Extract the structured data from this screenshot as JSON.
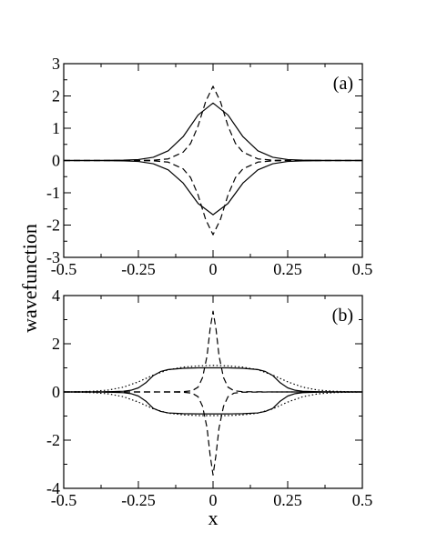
{
  "figure": {
    "ylabel": "wavefunction",
    "xlabel": "x"
  },
  "chart_data": [
    {
      "type": "line",
      "panel_label": "(a)",
      "xlim": [
        -0.5,
        0.5
      ],
      "ylim": [
        -3,
        3
      ],
      "xticks": [
        -0.5,
        -0.25,
        0,
        0.25,
        0.5
      ],
      "xtick_labels": [
        "-0.5",
        "-0.25",
        "0",
        "0.25",
        "0.5"
      ],
      "yticks": [
        -3,
        -2,
        -1,
        0,
        1,
        2,
        3
      ],
      "ytick_labels": [
        "-3",
        "-2",
        "-1",
        "0",
        "1",
        "2",
        "3"
      ],
      "grid": false,
      "series": [
        {
          "style": "solid",
          "x": [
            -0.5,
            -0.4,
            -0.3,
            -0.25,
            -0.2,
            -0.15,
            -0.1,
            -0.05,
            0,
            0.05,
            0.1,
            0.15,
            0.2,
            0.25,
            0.3,
            0.4,
            0.5
          ],
          "values": [
            0,
            0,
            0.01,
            0.03,
            0.1,
            0.3,
            0.74,
            1.41,
            1.78,
            1.41,
            0.74,
            0.3,
            0.1,
            0.03,
            0.01,
            0,
            0
          ]
        },
        {
          "style": "solid",
          "x": [
            -0.5,
            -0.4,
            -0.3,
            -0.25,
            -0.2,
            -0.15,
            -0.1,
            -0.05,
            0,
            0.05,
            0.1,
            0.15,
            0.2,
            0.25,
            0.3,
            0.4,
            0.5
          ],
          "values": [
            0,
            0,
            -0.01,
            -0.03,
            -0.1,
            -0.29,
            -0.7,
            -1.33,
            -1.68,
            -1.33,
            -0.7,
            -0.29,
            -0.1,
            -0.03,
            -0.01,
            0,
            0
          ]
        },
        {
          "style": "dashed",
          "x": [
            -0.5,
            -0.3,
            -0.2,
            -0.15,
            -0.1,
            -0.075,
            -0.05,
            -0.025,
            0,
            0.025,
            0.05,
            0.075,
            0.1,
            0.15,
            0.2,
            0.3,
            0.5
          ],
          "values": [
            0,
            0,
            0.01,
            0.05,
            0.26,
            0.53,
            1.07,
            1.82,
            2.3,
            1.82,
            1.07,
            0.53,
            0.26,
            0.05,
            0.01,
            0,
            0
          ]
        },
        {
          "style": "dashed",
          "x": [
            -0.5,
            -0.3,
            -0.2,
            -0.15,
            -0.1,
            -0.075,
            -0.05,
            -0.025,
            0,
            0.025,
            0.05,
            0.075,
            0.1,
            0.15,
            0.2,
            0.3,
            0.5
          ],
          "values": [
            0,
            0,
            -0.01,
            -0.05,
            -0.26,
            -0.53,
            -1.07,
            -1.82,
            -2.3,
            -1.82,
            -1.07,
            -0.53,
            -0.26,
            -0.05,
            -0.01,
            0,
            0
          ]
        }
      ]
    },
    {
      "type": "line",
      "panel_label": "(b)",
      "xlim": [
        -0.5,
        0.5
      ],
      "ylim": [
        -4,
        4
      ],
      "xticks": [
        -0.5,
        -0.25,
        0,
        0.25,
        0.5
      ],
      "xtick_labels": [
        "-0.5",
        "-0.25",
        "0",
        "0.25",
        "0.5"
      ],
      "yticks": [
        -4,
        -2,
        0,
        2,
        4
      ],
      "ytick_labels": [
        "-4",
        "-2",
        "0",
        "2",
        "4"
      ],
      "grid": false,
      "series": [
        {
          "style": "solid",
          "x": [
            -0.5,
            -0.4,
            -0.35,
            -0.3,
            -0.275,
            -0.25,
            -0.225,
            -0.2,
            -0.175,
            -0.15,
            -0.1,
            -0.05,
            0,
            0.05,
            0.1,
            0.15,
            0.175,
            0.2,
            0.225,
            0.25,
            0.275,
            0.3,
            0.35,
            0.4,
            0.5
          ],
          "values": [
            0,
            0,
            0.01,
            0.03,
            0.07,
            0.17,
            0.38,
            0.68,
            0.85,
            0.93,
            0.98,
            1.0,
            1.0,
            1.0,
            0.98,
            0.93,
            0.85,
            0.68,
            0.38,
            0.17,
            0.07,
            0.03,
            0.01,
            0,
            0
          ]
        },
        {
          "style": "solid",
          "x": [
            -0.5,
            -0.4,
            -0.35,
            -0.3,
            -0.275,
            -0.25,
            -0.225,
            -0.2,
            -0.175,
            -0.15,
            -0.1,
            -0.05,
            0,
            0.05,
            0.1,
            0.15,
            0.175,
            0.2,
            0.225,
            0.25,
            0.275,
            0.3,
            0.35,
            0.4,
            0.5
          ],
          "values": [
            0,
            0,
            -0.01,
            -0.03,
            -0.07,
            -0.17,
            -0.38,
            -0.68,
            -0.81,
            -0.87,
            -0.9,
            -0.91,
            -0.91,
            -0.91,
            -0.9,
            -0.87,
            -0.81,
            -0.68,
            -0.38,
            -0.17,
            -0.07,
            -0.03,
            -0.01,
            0,
            0
          ]
        },
        {
          "style": "dotted",
          "x": [
            -0.5,
            -0.45,
            -0.4,
            -0.35,
            -0.3,
            -0.25,
            -0.2,
            -0.15,
            -0.1,
            -0.05,
            0,
            0.05,
            0.1,
            0.15,
            0.2,
            0.25,
            0.3,
            0.35,
            0.4,
            0.45,
            0.5
          ],
          "values": [
            0,
            0.01,
            0.03,
            0.08,
            0.2,
            0.42,
            0.7,
            0.92,
            1.03,
            1.08,
            1.1,
            1.08,
            1.03,
            0.92,
            0.7,
            0.42,
            0.2,
            0.08,
            0.03,
            0.01,
            0
          ]
        },
        {
          "style": "dotted",
          "x": [
            -0.5,
            -0.45,
            -0.4,
            -0.35,
            -0.3,
            -0.25,
            -0.2,
            -0.15,
            -0.1,
            -0.05,
            0,
            0.05,
            0.1,
            0.15,
            0.2,
            0.25,
            0.3,
            0.35,
            0.4,
            0.45,
            0.5
          ],
          "values": [
            0,
            -0.01,
            -0.03,
            -0.08,
            -0.2,
            -0.42,
            -0.7,
            -0.88,
            -0.95,
            -0.98,
            -0.98,
            -0.98,
            -0.95,
            -0.88,
            -0.7,
            -0.42,
            -0.2,
            -0.08,
            -0.03,
            -0.01,
            0
          ]
        },
        {
          "style": "dashed",
          "x": [
            -0.5,
            -0.2,
            -0.1,
            -0.07,
            -0.05,
            -0.035,
            -0.02,
            -0.01,
            0,
            0.01,
            0.02,
            0.035,
            0.05,
            0.07,
            0.1,
            0.2,
            0.5
          ],
          "values": [
            0,
            0,
            0.01,
            0.05,
            0.2,
            0.6,
            1.5,
            2.6,
            3.35,
            2.6,
            1.5,
            0.6,
            0.2,
            0.05,
            0.01,
            0,
            0
          ]
        },
        {
          "style": "dashed",
          "x": [
            -0.5,
            -0.2,
            -0.1,
            -0.07,
            -0.05,
            -0.035,
            -0.02,
            -0.01,
            0,
            0.01,
            0.02,
            0.035,
            0.05,
            0.07,
            0.1,
            0.2,
            0.5
          ],
          "values": [
            0,
            0,
            -0.01,
            -0.05,
            -0.2,
            -0.6,
            -1.5,
            -2.6,
            -3.45,
            -2.6,
            -1.5,
            -0.6,
            -0.2,
            -0.05,
            -0.01,
            0,
            0
          ]
        }
      ]
    }
  ]
}
